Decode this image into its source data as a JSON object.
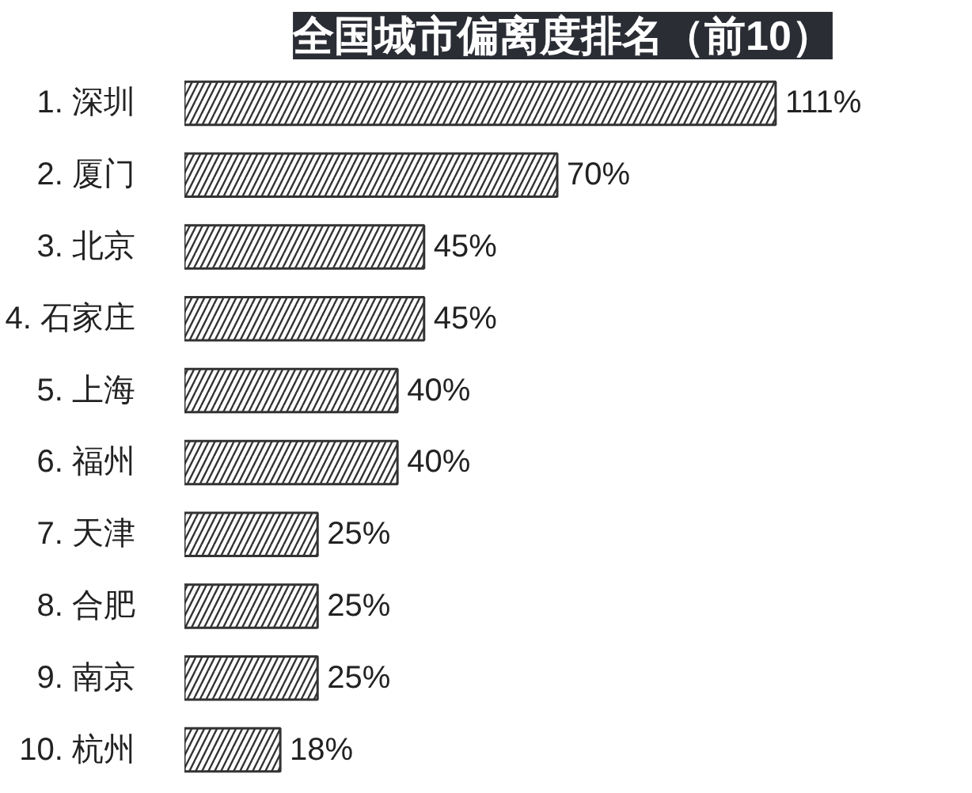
{
  "chart_data": {
    "type": "bar",
    "orientation": "horizontal",
    "title": "全国城市偏离度排名（前10）",
    "categories": [
      "1. 深圳",
      "2. 厦门",
      "3. 北京",
      "4. 石家庄",
      "5. 上海",
      "6. 福州",
      "7. 天津",
      "8. 合肥",
      "9. 南京",
      "10. 杭州"
    ],
    "values": [
      111,
      70,
      45,
      45,
      40,
      40,
      25,
      25,
      25,
      18
    ],
    "value_labels": [
      "111%",
      "70%",
      "45%",
      "45%",
      "40%",
      "40%",
      "25%",
      "25%",
      "25%",
      "18%"
    ],
    "color": "#333333"
  }
}
